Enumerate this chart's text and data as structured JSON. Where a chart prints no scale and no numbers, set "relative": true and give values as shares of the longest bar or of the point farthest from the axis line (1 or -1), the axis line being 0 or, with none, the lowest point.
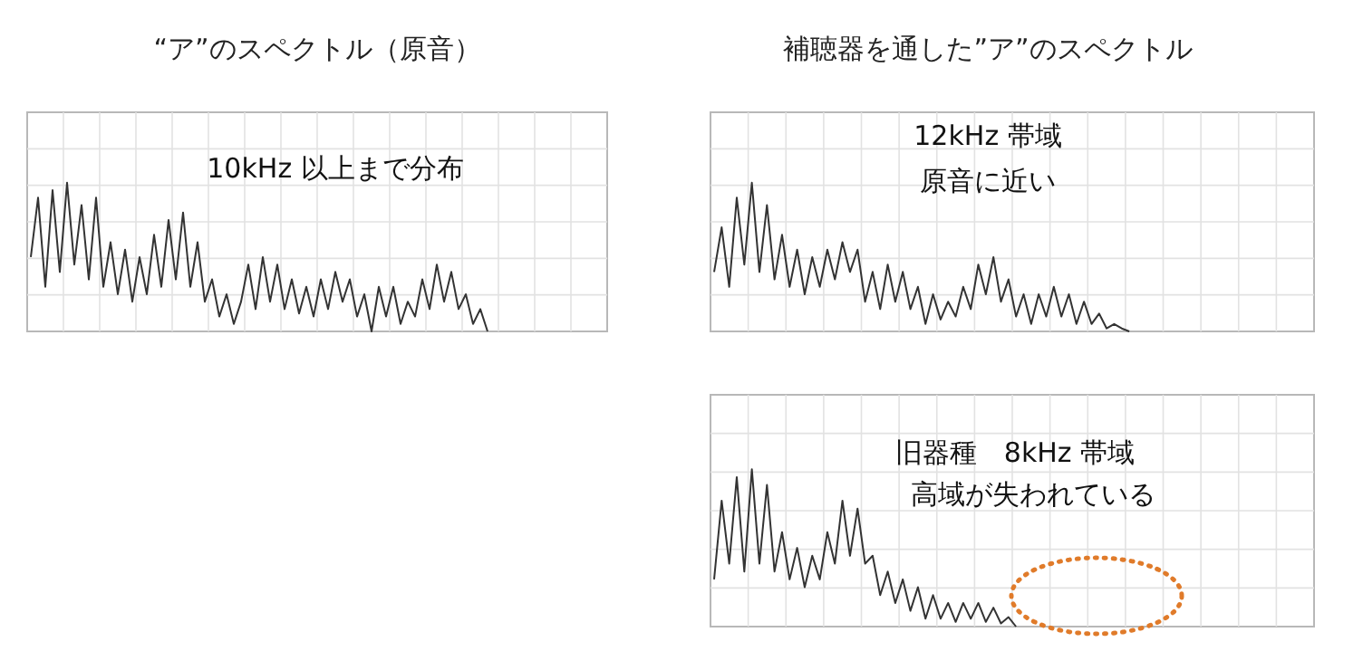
{
  "chart_data": [
    {
      "type": "line",
      "title": "“ア”のスペクトル（原音）",
      "annotations": [
        "10kHz 以上まで分布"
      ],
      "relative": true,
      "grid": true,
      "marker": "none",
      "line_style": "solid",
      "categories": [
        null,
        null,
        null,
        null,
        null,
        null,
        null,
        null,
        null,
        null,
        null,
        null,
        null,
        null,
        null,
        null,
        null,
        null,
        null,
        null,
        null,
        null,
        null,
        null,
        null,
        null,
        null,
        null,
        null,
        null,
        null,
        null,
        null,
        null,
        null,
        null,
        null,
        null,
        null,
        null,
        null,
        null,
        null,
        null,
        null,
        null,
        null,
        null,
        null,
        null,
        null,
        null,
        null,
        null,
        null,
        null,
        null,
        null,
        null,
        null,
        null,
        null,
        null,
        null,
        null,
        null,
        null,
        null,
        null,
        null,
        null,
        null,
        null,
        null,
        null,
        null,
        null,
        null,
        null,
        null
      ],
      "series": [
        {
          "color": "#333333",
          "values": [
            0.5,
            0.9,
            0.3,
            0.95,
            0.4,
            1.0,
            0.45,
            0.85,
            0.35,
            0.9,
            0.3,
            0.6,
            0.25,
            0.55,
            0.2,
            0.5,
            0.25,
            0.65,
            0.3,
            0.75,
            0.35,
            0.8,
            0.3,
            0.6,
            0.2,
            0.35,
            0.1,
            0.25,
            0.05,
            0.2,
            0.45,
            0.15,
            0.5,
            0.2,
            0.45,
            0.15,
            0.35,
            0.12,
            0.3,
            0.1,
            0.35,
            0.15,
            0.4,
            0.2,
            0.35,
            0.1,
            0.25,
            0.0,
            0.3,
            0.1,
            0.3,
            0.05,
            0.2,
            0.1,
            0.35,
            0.15,
            0.45,
            0.2,
            0.4,
            0.15,
            0.25,
            0.05,
            0.15,
            0.0,
            null,
            null,
            null,
            null,
            null,
            null,
            null,
            null,
            null,
            null,
            null,
            null,
            null,
            null,
            null,
            null
          ]
        }
      ]
    },
    {
      "type": "line",
      "title": "補聴器を通した”ア”のスペクトル",
      "annotations": [
        "12kHz 帯域",
        "原音に近い"
      ],
      "relative": true,
      "grid": true,
      "marker": "none",
      "line_style": "solid",
      "categories": [
        null,
        null,
        null,
        null,
        null,
        null,
        null,
        null,
        null,
        null,
        null,
        null,
        null,
        null,
        null,
        null,
        null,
        null,
        null,
        null,
        null,
        null,
        null,
        null,
        null,
        null,
        null,
        null,
        null,
        null,
        null,
        null,
        null,
        null,
        null,
        null,
        null,
        null,
        null,
        null,
        null,
        null,
        null,
        null,
        null,
        null,
        null,
        null,
        null,
        null,
        null,
        null,
        null,
        null,
        null,
        null,
        null,
        null,
        null,
        null,
        null,
        null,
        null,
        null,
        null,
        null,
        null,
        null,
        null,
        null,
        null,
        null,
        null,
        null,
        null,
        null,
        null,
        null,
        null,
        null
      ],
      "series": [
        {
          "color": "#333333",
          "values": [
            0.4,
            0.7,
            0.3,
            0.9,
            0.45,
            1.0,
            0.4,
            0.85,
            0.35,
            0.65,
            0.3,
            0.55,
            0.25,
            0.5,
            0.3,
            0.55,
            0.35,
            0.6,
            0.4,
            0.55,
            0.2,
            0.4,
            0.15,
            0.45,
            0.2,
            0.4,
            0.15,
            0.3,
            0.05,
            0.25,
            0.08,
            0.2,
            0.1,
            0.3,
            0.15,
            0.45,
            0.25,
            0.5,
            0.2,
            0.35,
            0.1,
            0.25,
            0.05,
            0.25,
            0.1,
            0.3,
            0.1,
            0.25,
            0.05,
            0.2,
            0.05,
            0.12,
            0.02,
            0.05,
            0.02,
            0.0,
            null,
            null,
            null,
            null,
            null,
            null,
            null,
            null,
            null,
            null,
            null,
            null,
            null,
            null,
            null,
            null,
            null,
            null,
            null,
            null,
            null,
            null,
            null,
            null
          ]
        }
      ]
    },
    {
      "type": "line",
      "annotations": [
        "旧器種　8kHz 帯域",
        "高域が失われている"
      ],
      "relative": true,
      "grid": true,
      "marker": "none",
      "line_style": "solid",
      "categories": [
        null,
        null,
        null,
        null,
        null,
        null,
        null,
        null,
        null,
        null,
        null,
        null,
        null,
        null,
        null,
        null,
        null,
        null,
        null,
        null,
        null,
        null,
        null,
        null,
        null,
        null,
        null,
        null,
        null,
        null,
        null,
        null,
        null,
        null,
        null,
        null,
        null,
        null,
        null,
        null,
        null,
        null,
        null,
        null,
        null,
        null,
        null,
        null,
        null,
        null,
        null,
        null,
        null,
        null,
        null,
        null,
        null,
        null,
        null,
        null,
        null,
        null,
        null,
        null,
        null,
        null,
        null,
        null,
        null,
        null,
        null,
        null,
        null,
        null,
        null,
        null,
        null,
        null,
        null,
        null
      ],
      "series": [
        {
          "color": "#333333",
          "values": [
            0.3,
            0.8,
            0.4,
            0.95,
            0.35,
            1.0,
            0.4,
            0.9,
            0.35,
            0.6,
            0.3,
            0.5,
            0.25,
            0.45,
            0.3,
            0.6,
            0.4,
            0.8,
            0.45,
            0.75,
            0.4,
            0.45,
            0.2,
            0.35,
            0.15,
            0.3,
            0.1,
            0.25,
            0.05,
            0.2,
            0.05,
            0.15,
            0.03,
            0.15,
            0.05,
            0.15,
            0.03,
            0.12,
            0.02,
            0.06,
            0.0,
            null,
            null,
            null,
            null,
            null,
            null,
            null,
            null,
            null,
            null,
            null,
            null,
            null,
            null,
            null,
            null,
            null,
            null,
            null,
            null,
            null,
            null,
            null,
            null,
            null,
            null,
            null,
            null,
            null,
            null,
            null,
            null,
            null,
            null,
            null,
            null,
            null,
            null,
            null
          ]
        }
      ]
    }
  ]
}
